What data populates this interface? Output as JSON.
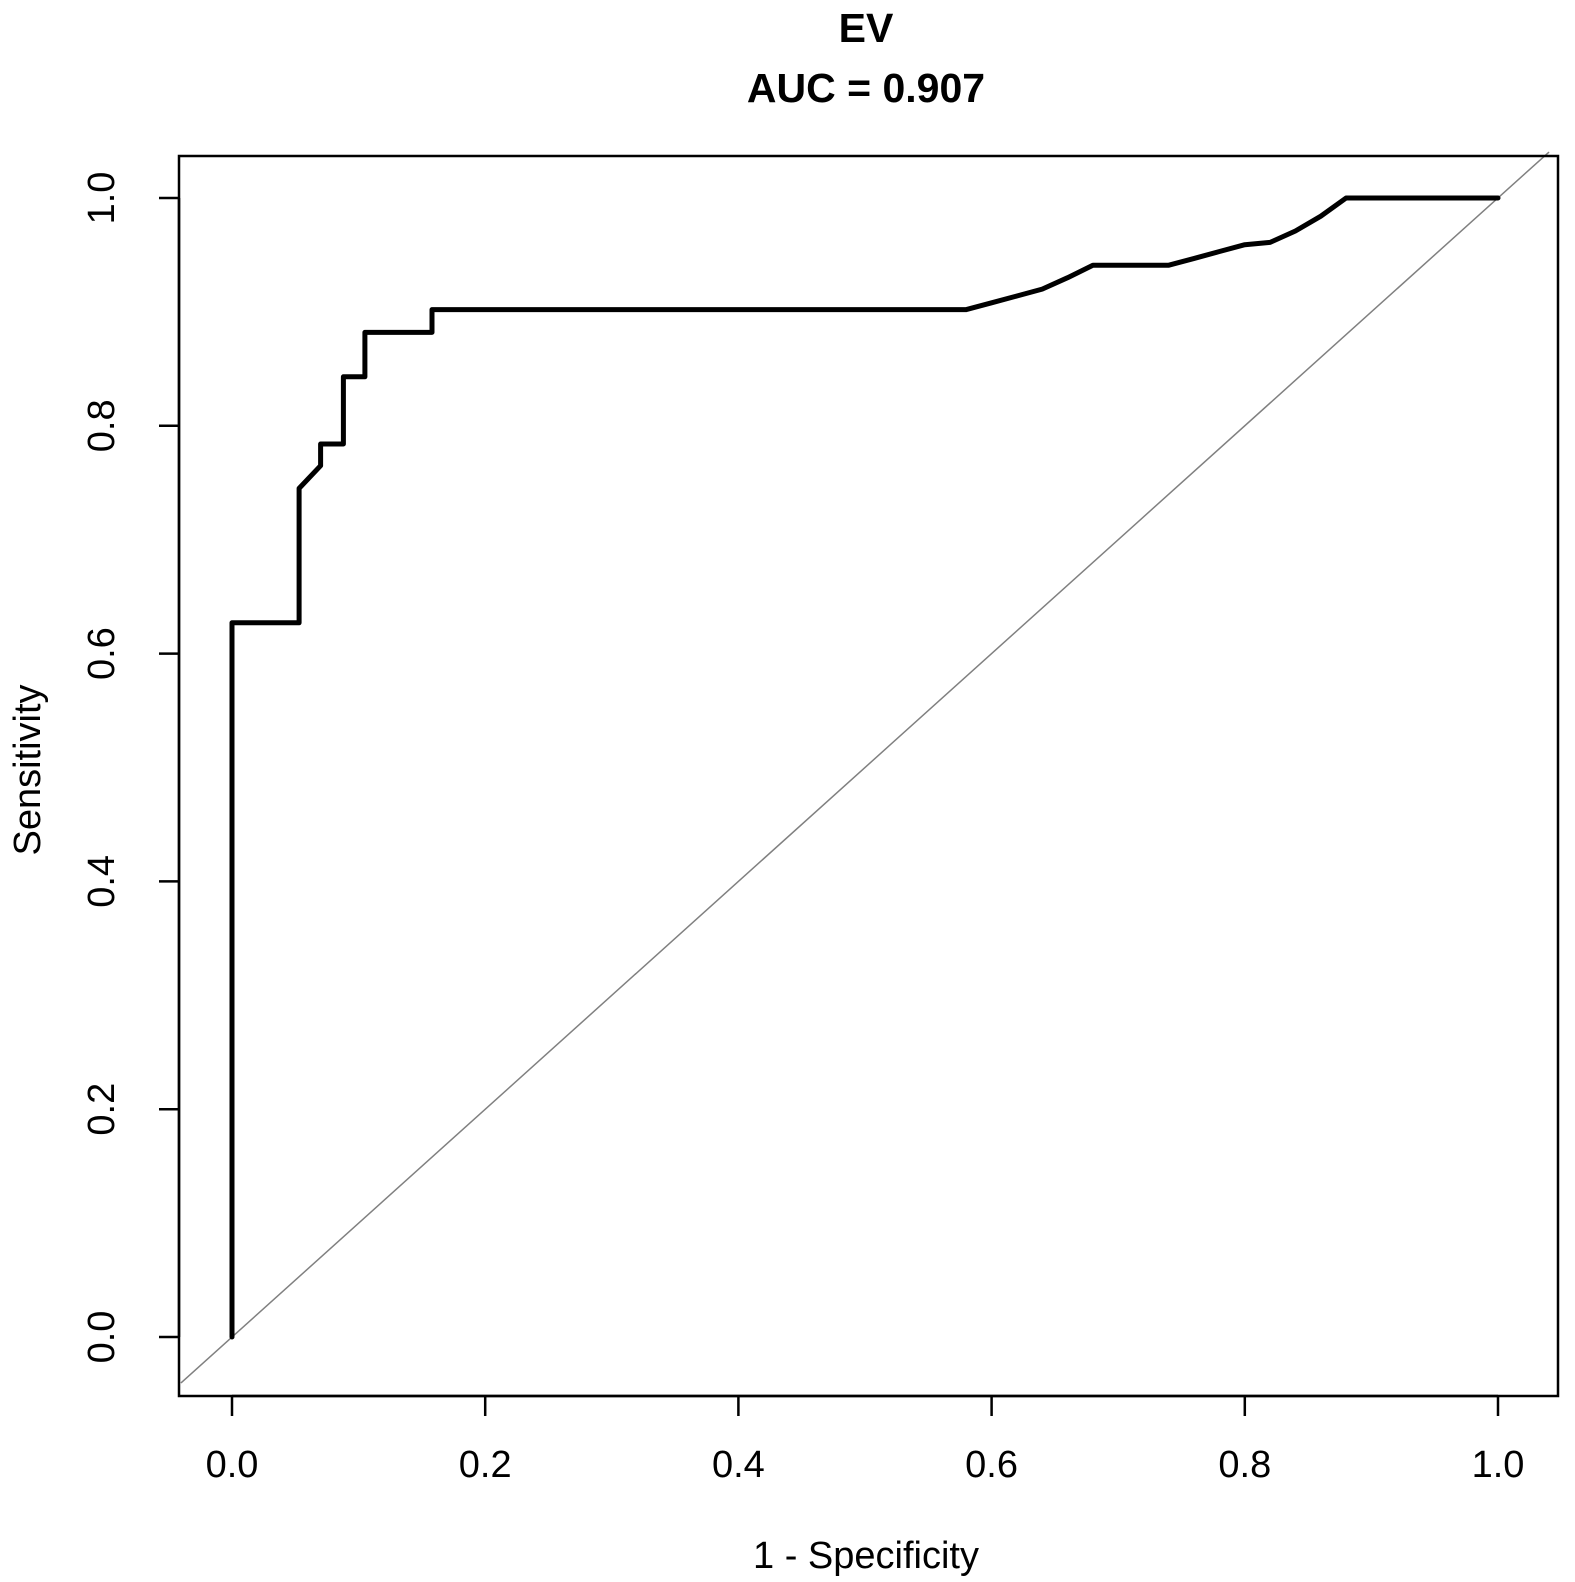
{
  "chart_data": {
    "type": "line",
    "title": "EV",
    "subtitle": "AUC = 0.907",
    "xlabel": "1 - Specificity",
    "ylabel": "Sensitivity",
    "xlim": [
      0.0,
      1.0
    ],
    "ylim": [
      0.0,
      1.0
    ],
    "xticks": [
      "0.0",
      "0.2",
      "0.4",
      "0.6",
      "0.8",
      "1.0"
    ],
    "yticks": [
      "0.0",
      "0.2",
      "0.4",
      "0.6",
      "0.8",
      "1.0"
    ],
    "grid": false,
    "legend": "none",
    "series": [
      {
        "color": "#000000",
        "points": [
          [
            0.0,
            0.0
          ],
          [
            0.0,
            0.627
          ],
          [
            0.053,
            0.627
          ],
          [
            0.053,
            0.745
          ],
          [
            0.07,
            0.765
          ],
          [
            0.07,
            0.784
          ],
          [
            0.088,
            0.784
          ],
          [
            0.088,
            0.843
          ],
          [
            0.105,
            0.843
          ],
          [
            0.105,
            0.882
          ],
          [
            0.158,
            0.882
          ],
          [
            0.158,
            0.902
          ],
          [
            0.58,
            0.902
          ],
          [
            0.6,
            0.908
          ],
          [
            0.62,
            0.914
          ],
          [
            0.64,
            0.92
          ],
          [
            0.66,
            0.93
          ],
          [
            0.68,
            0.941
          ],
          [
            0.74,
            0.941
          ],
          [
            0.76,
            0.947
          ],
          [
            0.78,
            0.953
          ],
          [
            0.8,
            0.959
          ],
          [
            0.82,
            0.961
          ],
          [
            0.84,
            0.971
          ],
          [
            0.86,
            0.984
          ],
          [
            0.88,
            1.0
          ],
          [
            1.0,
            1.0
          ]
        ]
      },
      {
        "color": "#808080",
        "points": [
          [
            -0.04,
            -0.04
          ],
          [
            1.04,
            1.04
          ]
        ]
      }
    ]
  }
}
